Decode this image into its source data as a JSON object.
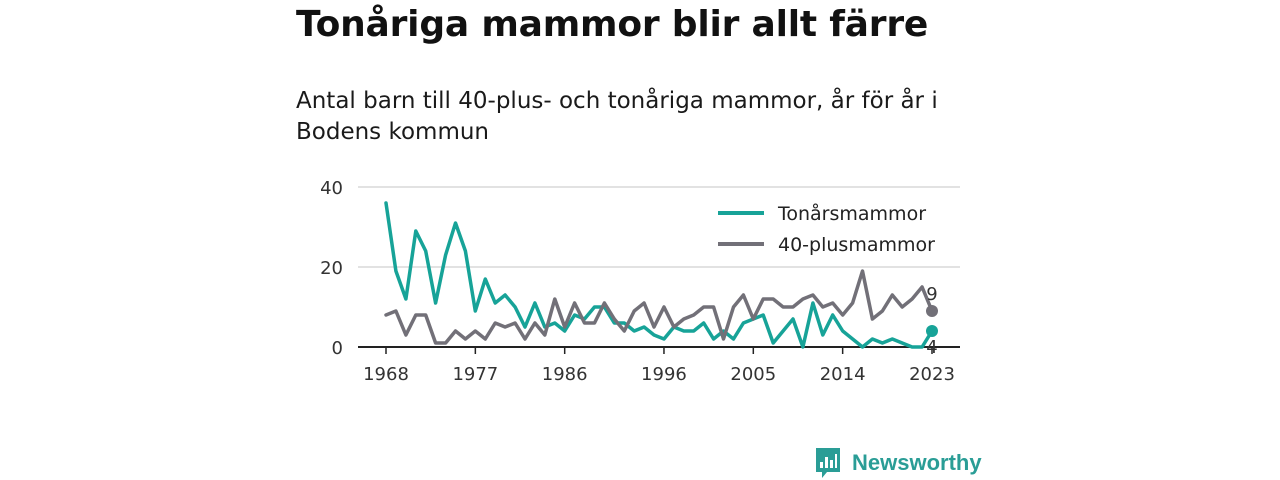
{
  "title": "Tonåriga mammor blir allt färre",
  "subtitle": "Antal barn till 40-plus- och tonåriga mammor, år för år i Bodens kommun",
  "brand": {
    "name": "Newsworthy",
    "icon": "newsworthy-logo-icon"
  },
  "colors": {
    "teen": "#17a398",
    "forty": "#727078",
    "grid": "#d9d9d9",
    "axis": "#222222"
  },
  "chart_data": {
    "type": "line",
    "title": "",
    "xlabel": "",
    "ylabel": "",
    "x": [
      1968,
      1969,
      1970,
      1971,
      1972,
      1973,
      1974,
      1975,
      1976,
      1977,
      1978,
      1979,
      1980,
      1981,
      1982,
      1983,
      1984,
      1985,
      1986,
      1987,
      1988,
      1989,
      1990,
      1991,
      1992,
      1993,
      1994,
      1995,
      1996,
      1997,
      1998,
      1999,
      2000,
      2001,
      2002,
      2003,
      2004,
      2005,
      2006,
      2007,
      2008,
      2009,
      2010,
      2011,
      2012,
      2013,
      2014,
      2015,
      2016,
      2017,
      2018,
      2019,
      2020,
      2021,
      2022,
      2023
    ],
    "xlim": [
      1968,
      2023
    ],
    "ylim": [
      0,
      40
    ],
    "xticks": [
      "1968",
      "1977",
      "1986",
      "1996",
      "2005",
      "2014",
      "2023"
    ],
    "yticks": [
      "0",
      "20",
      "40"
    ],
    "grid": true,
    "legend": "top-right",
    "series": [
      {
        "name": "Tonårsmammor",
        "color": "#17a398",
        "values": [
          36,
          19,
          12,
          29,
          24,
          11,
          23,
          31,
          24,
          9,
          17,
          11,
          13,
          10,
          5,
          11,
          5,
          6,
          4,
          8,
          7,
          10,
          10,
          6,
          6,
          4,
          5,
          3,
          2,
          5,
          4,
          4,
          6,
          2,
          4,
          2,
          6,
          7,
          8,
          1,
          4,
          7,
          0,
          11,
          3,
          8,
          4,
          2,
          0,
          2,
          1,
          2,
          1,
          0,
          0,
          4
        ],
        "end_label": "4"
      },
      {
        "name": "40-plusmammor",
        "color": "#727078",
        "values": [
          8,
          9,
          3,
          8,
          8,
          1,
          1,
          4,
          2,
          4,
          2,
          6,
          5,
          6,
          2,
          6,
          3,
          12,
          5,
          11,
          6,
          6,
          11,
          7,
          4,
          9,
          11,
          5,
          10,
          5,
          7,
          8,
          10,
          10,
          2,
          10,
          13,
          7,
          12,
          12,
          10,
          10,
          12,
          13,
          10,
          11,
          8,
          11,
          19,
          7,
          9,
          13,
          10,
          12,
          15,
          9
        ],
        "end_label": "9"
      }
    ]
  }
}
